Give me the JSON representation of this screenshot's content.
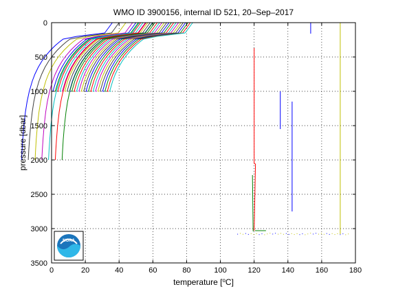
{
  "chart_data": {
    "type": "line",
    "title": "WMO ID 3900156, internal ID 521, 20–Sep–2017",
    "xlabel_prefix": "temperature [",
    "xlabel_unit_sup": "o",
    "xlabel_suffix": "C]",
    "ylabel": "pressure [dbar]",
    "xlim": [
      0,
      180
    ],
    "ylim": [
      0,
      3500
    ],
    "y_reversed": true,
    "grid": true,
    "x_ticks": [
      "0",
      "20",
      "40",
      "60",
      "80",
      "100",
      "120",
      "140",
      "160",
      "180"
    ],
    "y_ticks": [
      "0",
      "500",
      "1000",
      "1500",
      "2000",
      "2500",
      "3000",
      "3500"
    ],
    "logo_text": "NOAA",
    "profile_colors": [
      "#0000ff",
      "#008000",
      "#ff0000",
      "#00bfbf",
      "#bf00bf",
      "#bfbf00",
      "#404040"
    ],
    "profile_group_a": {
      "description_free": true,
      "count": 25,
      "first_offset": 10,
      "offset_step": 1.4,
      "bottom_pressure": 1000
    },
    "profile_group_b": {
      "offsets": [
        0,
        4,
        8,
        12,
        16,
        20,
        24
      ],
      "bottom_pressure": 2000
    },
    "series": [
      {
        "color": "#ff0000",
        "values": [
          [
            120,
            370
          ],
          [
            120,
            2050
          ],
          [
            120.8,
            2060
          ],
          [
            120,
            3030
          ]
        ]
      },
      {
        "color": "#008000",
        "values": [
          [
            119,
            2220
          ],
          [
            119.4,
            3040
          ]
        ]
      },
      {
        "color": "#0000ff",
        "values": [
          [
            135.5,
            1000
          ],
          [
            135.5,
            1550
          ]
        ]
      },
      {
        "color": "#0000ff",
        "values": [
          [
            142.5,
            1150
          ],
          [
            142.5,
            2750
          ]
        ]
      },
      {
        "color": "#0000ff",
        "values": [
          [
            153.5,
            0
          ],
          [
            153.5,
            160
          ]
        ]
      },
      {
        "color": "#bfbf00",
        "values": [
          [
            171,
            0
          ],
          [
            171,
            3080
          ]
        ]
      }
    ]
  }
}
